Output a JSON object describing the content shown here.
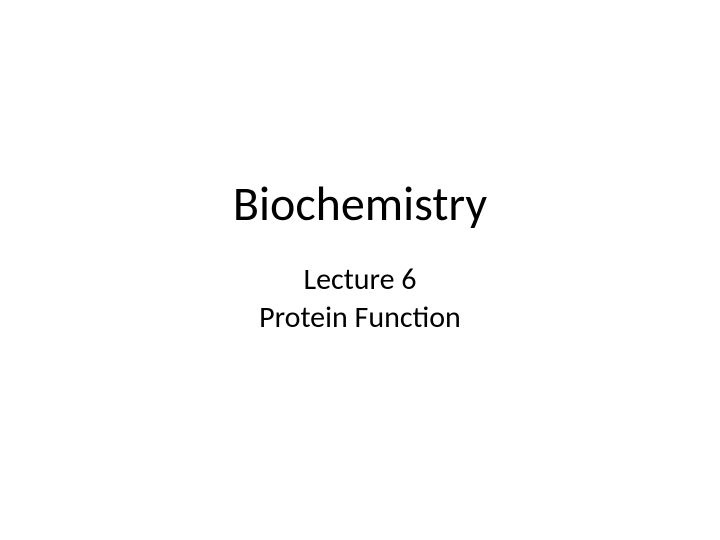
{
  "slide": {
    "title": "Biochemistry",
    "subtitle_line1": "Lecture 6",
    "subtitle_line2": "Protein Function",
    "background_color": "#ffffff",
    "text_color": "#000000",
    "title_fontsize": 48,
    "subtitle_fontsize": 30,
    "font_family": "Calibri"
  }
}
